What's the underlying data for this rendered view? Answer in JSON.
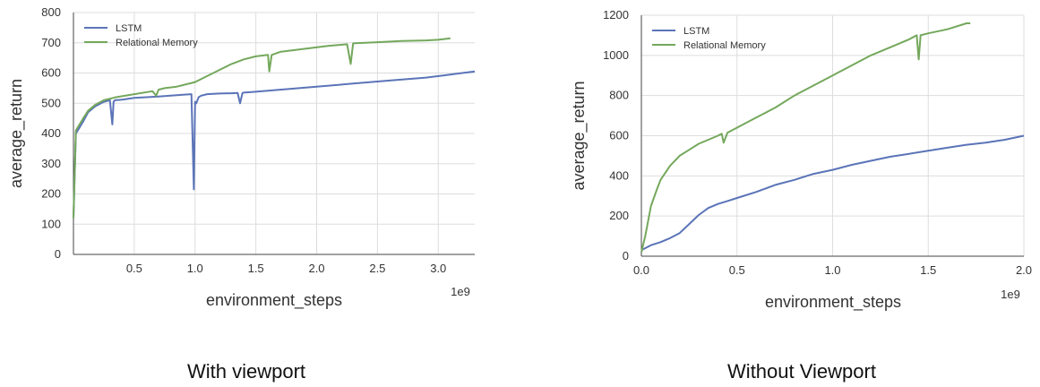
{
  "colors": {
    "lstm": "#5b74b8",
    "relational_memory": "#74a85c",
    "grid": "#dddddd",
    "axis": "#444444"
  },
  "chart_data": [
    {
      "type": "line",
      "caption": "With viewport",
      "xlabel": "environment_steps",
      "ylabel": "average_return",
      "x_multiplier_label": "1e9",
      "xlim": [
        0.0,
        3.3
      ],
      "ylim": [
        0,
        800
      ],
      "xticks": [
        0.5,
        1.0,
        1.5,
        2.0,
        2.5,
        3.0
      ],
      "xtick_labels": [
        "0.5",
        "1.0",
        "1.5",
        "2.0",
        "2.5",
        "3.0"
      ],
      "yticks": [
        0,
        100,
        200,
        300,
        400,
        500,
        600,
        700,
        800
      ],
      "ytick_labels": [
        "0",
        "100",
        "200",
        "300",
        "400",
        "500",
        "600",
        "700",
        "800"
      ],
      "grid": true,
      "legend_position": "top-left",
      "series": [
        {
          "name": "LSTM",
          "x": [
            0.0,
            0.02,
            0.05,
            0.08,
            0.12,
            0.18,
            0.25,
            0.3,
            0.32,
            0.33,
            0.34,
            0.4,
            0.5,
            0.6,
            0.7,
            0.8,
            0.9,
            0.97,
            0.99,
            1.0,
            1.01,
            1.03,
            1.05,
            1.1,
            1.2,
            1.3,
            1.35,
            1.37,
            1.39,
            1.4,
            1.5,
            1.7,
            2.0,
            2.3,
            2.6,
            2.9,
            3.1,
            3.3
          ],
          "y": [
            120,
            400,
            420,
            440,
            470,
            490,
            505,
            510,
            430,
            505,
            510,
            512,
            518,
            520,
            522,
            525,
            528,
            530,
            215,
            505,
            500,
            520,
            525,
            530,
            532,
            533,
            534,
            500,
            534,
            535,
            538,
            545,
            555,
            565,
            575,
            585,
            595,
            605
          ]
        },
        {
          "name": "Relational Memory",
          "x": [
            0.0,
            0.02,
            0.05,
            0.08,
            0.12,
            0.18,
            0.25,
            0.35,
            0.5,
            0.65,
            0.68,
            0.7,
            0.75,
            0.85,
            0.9,
            1.0,
            1.1,
            1.2,
            1.3,
            1.4,
            1.5,
            1.6,
            1.61,
            1.63,
            1.7,
            1.9,
            2.1,
            2.25,
            2.28,
            2.3,
            2.5,
            2.7,
            2.9,
            3.0,
            3.1
          ],
          "y": [
            120,
            410,
            430,
            450,
            475,
            495,
            510,
            520,
            530,
            540,
            525,
            545,
            550,
            555,
            560,
            570,
            590,
            610,
            630,
            645,
            655,
            660,
            605,
            660,
            670,
            680,
            690,
            695,
            630,
            698,
            702,
            706,
            708,
            710,
            715
          ]
        }
      ]
    },
    {
      "type": "line",
      "caption": "Without Viewport",
      "xlabel": "environment_steps",
      "ylabel": "average_return",
      "x_multiplier_label": "1e9",
      "xlim": [
        0.0,
        2.0
      ],
      "ylim": [
        0,
        1200
      ],
      "xticks": [
        0.0,
        0.5,
        1.0,
        1.5,
        2.0
      ],
      "xtick_labels": [
        "0.0",
        "0.5",
        "1.0",
        "1.5",
        "2.0"
      ],
      "yticks": [
        0,
        200,
        400,
        600,
        800,
        1000,
        1200
      ],
      "ytick_labels": [
        "0",
        "200",
        "400",
        "600",
        "800",
        "1000",
        "1200"
      ],
      "grid": true,
      "legend_position": "top-left",
      "series": [
        {
          "name": "LSTM",
          "x": [
            0.0,
            0.05,
            0.1,
            0.15,
            0.2,
            0.25,
            0.3,
            0.35,
            0.4,
            0.45,
            0.5,
            0.6,
            0.7,
            0.8,
            0.9,
            1.0,
            1.1,
            1.2,
            1.3,
            1.4,
            1.5,
            1.6,
            1.7,
            1.8,
            1.9,
            2.0
          ],
          "y": [
            30,
            55,
            70,
            90,
            115,
            160,
            205,
            240,
            260,
            275,
            290,
            320,
            355,
            380,
            410,
            430,
            455,
            475,
            495,
            510,
            525,
            540,
            555,
            565,
            580,
            600
          ]
        },
        {
          "name": "Relational Memory",
          "x": [
            0.0,
            0.02,
            0.05,
            0.08,
            0.1,
            0.15,
            0.2,
            0.25,
            0.3,
            0.35,
            0.4,
            0.42,
            0.43,
            0.45,
            0.5,
            0.6,
            0.7,
            0.8,
            0.9,
            1.0,
            1.1,
            1.2,
            1.3,
            1.4,
            1.44,
            1.45,
            1.46,
            1.5,
            1.6,
            1.7,
            1.72
          ],
          "y": [
            20,
            100,
            250,
            330,
            380,
            450,
            500,
            530,
            560,
            580,
            600,
            610,
            565,
            615,
            640,
            690,
            740,
            800,
            850,
            900,
            950,
            1000,
            1040,
            1080,
            1100,
            980,
            1100,
            1110,
            1130,
            1160,
            1160
          ]
        }
      ]
    }
  ]
}
